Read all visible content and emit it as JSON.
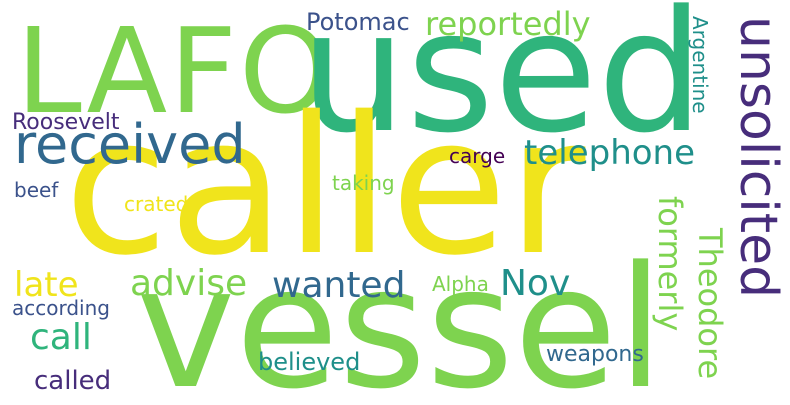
{
  "colors": {
    "background": "#ffffff",
    "yellow": "#f0e41c",
    "green": "#7ed34f",
    "teal_green": "#2fb47c",
    "teal": "#1f8f8a",
    "blue": "#31688e",
    "slate": "#3b528b",
    "purple": "#472d7b",
    "dark_purple": "#440154",
    "yellow_green": "#b6de2b"
  },
  "words": [
    {
      "text": "caller",
      "color": "yellow"
    },
    {
      "text": "vessel",
      "color": "green"
    },
    {
      "text": "used",
      "color": "teal_green"
    },
    {
      "text": "LAFO",
      "color": "green"
    },
    {
      "text": "unsolicited",
      "color": "purple"
    },
    {
      "text": "received",
      "color": "blue"
    },
    {
      "text": "telephone",
      "color": "teal"
    },
    {
      "text": "reportedly",
      "color": "green"
    },
    {
      "text": "Potomac",
      "color": "slate"
    },
    {
      "text": "Roosevelt",
      "color": "purple"
    },
    {
      "text": "Argentine",
      "color": "teal"
    },
    {
      "text": "carge",
      "color": "dark_purple"
    },
    {
      "text": "beef",
      "color": "slate"
    },
    {
      "text": "taking",
      "color": "green"
    },
    {
      "text": "crated",
      "color": "yellow"
    },
    {
      "text": "formerly",
      "color": "green"
    },
    {
      "text": "Theodore",
      "color": "green"
    },
    {
      "text": "late",
      "color": "yellow"
    },
    {
      "text": "advise",
      "color": "green"
    },
    {
      "text": "wanted",
      "color": "blue"
    },
    {
      "text": "Nov",
      "color": "teal"
    },
    {
      "text": "Alpha",
      "color": "green"
    },
    {
      "text": "according",
      "color": "slate"
    },
    {
      "text": "call",
      "color": "teal_green"
    },
    {
      "text": "called",
      "color": "purple"
    },
    {
      "text": "believed",
      "color": "teal"
    },
    {
      "text": "weapons",
      "color": "blue"
    }
  ]
}
